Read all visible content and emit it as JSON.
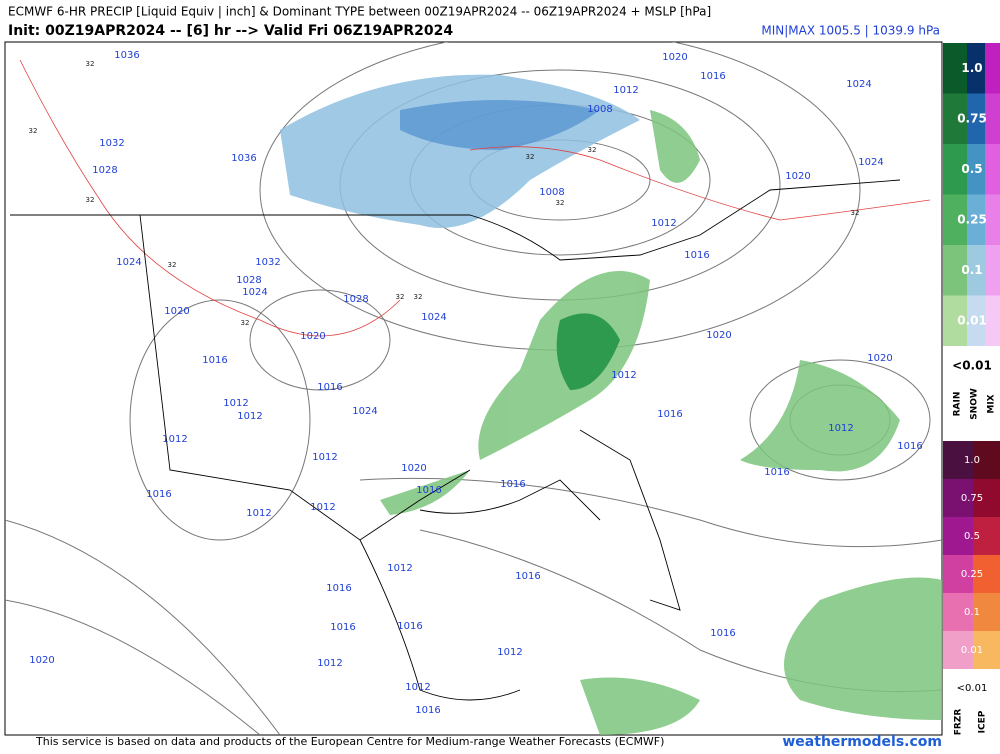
{
  "header": {
    "title": "ECMWF 6-HR PRECIP [Liquid Equiv | inch] & Dominant TYPE between 00Z19APR2024 -- 06Z19APR2024 + MSLP [hPa]",
    "subtitle": "Init: 00Z19APR2024 -- [6] hr --> Valid Fri 06Z19APR2024",
    "minmax": "MIN|MAX 1005.5 | 1039.9 hPa"
  },
  "map": {
    "isobar_labels": [
      "1036",
      "1032",
      "1028",
      "1036",
      "1024",
      "1032",
      "1028",
      "1024",
      "1020",
      "1028",
      "1024",
      "1020",
      "1016",
      "1016",
      "1012",
      "1012",
      "1024",
      "1012",
      "1012",
      "1020",
      "1016",
      "1016",
      "1012",
      "1012",
      "1016",
      "1016",
      "1012",
      "1016",
      "1016",
      "1016",
      "1012",
      "1012",
      "1012",
      "1016",
      "1020",
      "1016",
      "1020",
      "1016",
      "1012",
      "1008",
      "1008",
      "1012",
      "1016",
      "1024",
      "1024",
      "1020",
      "1020",
      "1020",
      "1012",
      "1016",
      "1012",
      "1016",
      "1016"
    ],
    "freezing_labels": [
      "32",
      "32",
      "32",
      "32",
      "32",
      "32",
      "32",
      "32",
      "32",
      "32",
      "32"
    ]
  },
  "legend": {
    "rain_snow_mix": {
      "levels": [
        "1.0",
        "0.75",
        "0.5",
        "0.25",
        "0.1",
        "0.01"
      ],
      "below": "<0.01",
      "columns": [
        "RAIN",
        "SNOW",
        "MIX"
      ]
    },
    "frzr_icep": {
      "levels": [
        "1.0",
        "0.75",
        "0.5",
        "0.25",
        "0.1",
        "0.01"
      ],
      "below": "<0.01",
      "columns": [
        "FRZR",
        "ICEP"
      ]
    }
  },
  "footer": {
    "credit": "This service is based on data and products of the European Centre for Medium-range Weather Forecasts (ECMWF)",
    "site": "weathermodels.com"
  }
}
